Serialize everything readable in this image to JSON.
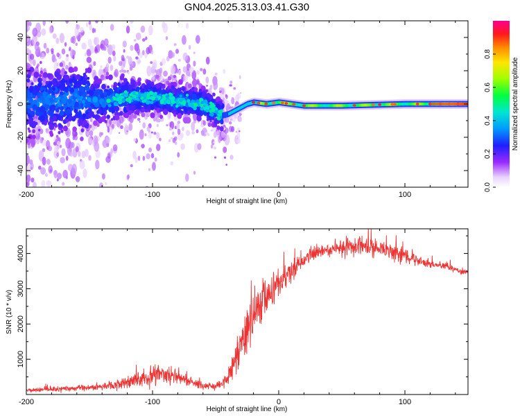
{
  "chart_data": [
    {
      "type": "heatmap",
      "title": "GN04.2025.313.03.41.G30",
      "xlabel": "Height of straight line (km)",
      "ylabel": "Frequency (Hz)",
      "xlim": [
        -200,
        150
      ],
      "ylim": [
        -50,
        50
      ],
      "x_ticks": [
        -200,
        -100,
        0,
        100
      ],
      "y_ticks": [
        -40,
        -20,
        0,
        20,
        40
      ],
      "x_tick_labels": [
        "-200",
        "-100",
        "0",
        "100"
      ],
      "y_tick_labels": [
        "-40",
        "-20",
        "0",
        "20",
        "40"
      ],
      "colorbar": {
        "label": "Normalized spectral amplitude",
        "range": [
          0,
          1
        ],
        "ticks": [
          0.0,
          0.2,
          0.4,
          0.6,
          0.8
        ],
        "tick_labels": [
          "0.0",
          "0.2",
          "0.4",
          "0.6",
          "0.8"
        ],
        "colors": [
          "#ffffff",
          "#8a00ff",
          "#0000ff",
          "#00bfff",
          "#00ff7f",
          "#7fff00",
          "#ffff00",
          "#ff7f00",
          "#ff0000",
          "#ff00a0"
        ]
      },
      "ridge": {
        "x": [
          -200,
          -180,
          -160,
          -140,
          -120,
          -100,
          -80,
          -60,
          -50,
          -45,
          -40,
          -35,
          -30,
          -25,
          -20,
          -10,
          0,
          10,
          20,
          50,
          100,
          150
        ],
        "freq": [
          1,
          2,
          3,
          2,
          4,
          4,
          2,
          0,
          -4,
          -7,
          -6,
          -4,
          -2,
          0,
          1,
          0,
          1,
          0,
          -1,
          -1,
          0,
          0
        ]
      }
    },
    {
      "type": "line",
      "xlabel": "Height of straight line (km)",
      "ylabel": "SNR (10 * v/v)",
      "xlim": [
        -200,
        150
      ],
      "ylim": [
        0,
        4700
      ],
      "x_ticks": [
        -200,
        -100,
        0,
        100
      ],
      "y_ticks": [
        1000,
        2000,
        3000,
        4000
      ],
      "x_tick_labels": [
        "-200",
        "-100",
        "0",
        "100"
      ],
      "y_tick_labels": [
        "1000",
        "2000",
        "3000",
        "4000"
      ],
      "series": [
        {
          "name": "SNR",
          "color": "#ee3333",
          "x": [
            -200,
            -180,
            -160,
            -140,
            -130,
            -120,
            -110,
            -100,
            -90,
            -80,
            -70,
            -60,
            -50,
            -45,
            -40,
            -35,
            -30,
            -25,
            -20,
            -15,
            -10,
            -5,
            0,
            5,
            10,
            15,
            20,
            25,
            30,
            40,
            50,
            60,
            70,
            80,
            90,
            100,
            110,
            120,
            130,
            140,
            150
          ],
          "values": [
            120,
            150,
            180,
            220,
            260,
            350,
            450,
            520,
            580,
            480,
            360,
            260,
            230,
            280,
            500,
            900,
            1400,
            1700,
            2200,
            2500,
            2750,
            2900,
            3150,
            3300,
            3450,
            3650,
            3800,
            3950,
            4050,
            4100,
            4150,
            4200,
            4180,
            4120,
            4050,
            3950,
            3800,
            3700,
            3650,
            3550,
            3450
          ],
          "noise": [
            60,
            80,
            90,
            120,
            150,
            200,
            250,
            320,
            300,
            220,
            150,
            120,
            120,
            150,
            300,
            500,
            600,
            650,
            700,
            650,
            600,
            550,
            500,
            420,
            350,
            300,
            250,
            220,
            200,
            200,
            250,
            300,
            320,
            300,
            280,
            250,
            150,
            120,
            100,
            100,
            100
          ]
        }
      ]
    }
  ]
}
